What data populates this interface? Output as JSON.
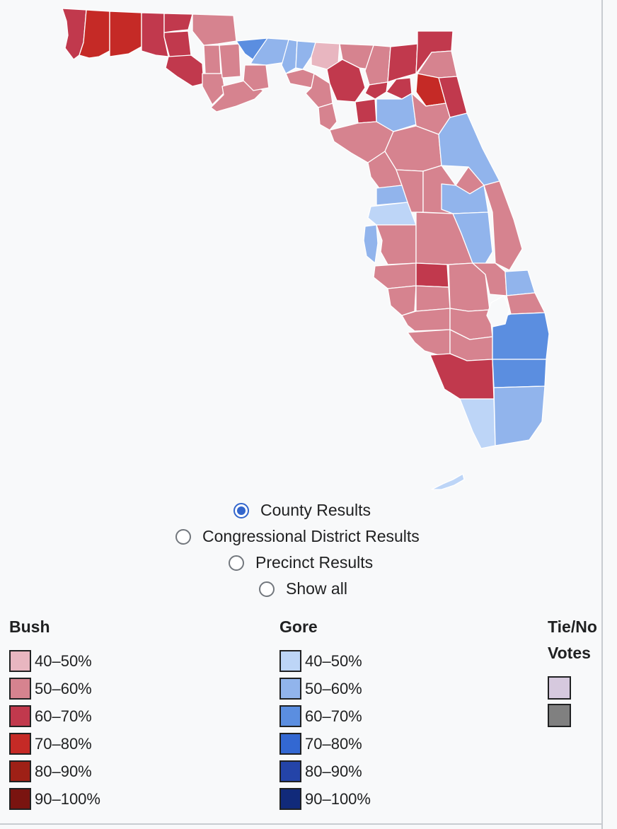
{
  "map": {
    "colors": {
      "bush_40_50": "#e8b6c0",
      "bush_50_60": "#d6838f",
      "bush_60_70": "#c1394d",
      "bush_70_80": "#c52a26",
      "gore_40_50": "#bdd5f7",
      "gore_50_60": "#91b4ec",
      "gore_60_70": "#5b8ee0",
      "gore_70_80": "#3368d2",
      "water": "#f8f9fa"
    }
  },
  "view_options": {
    "county": "County Results",
    "district": "Congressional District Results",
    "precinct": "Precinct Results",
    "all": "Show all",
    "selected": "County Results"
  },
  "legend": {
    "bush": {
      "title": "Bush",
      "items": [
        {
          "label": "40–50%",
          "color": "#e8b6c0"
        },
        {
          "label": "50–60%",
          "color": "#d6838f"
        },
        {
          "label": "60–70%",
          "color": "#c1394d"
        },
        {
          "label": "70–80%",
          "color": "#c52a26"
        },
        {
          "label": "80–90%",
          "color": "#9e2016"
        },
        {
          "label": "90–100%",
          "color": "#7a1410"
        }
      ]
    },
    "gore": {
      "title": "Gore",
      "items": [
        {
          "label": "40–50%",
          "color": "#bdd5f7"
        },
        {
          "label": "50–60%",
          "color": "#91b4ec"
        },
        {
          "label": "60–70%",
          "color": "#5b8ee0"
        },
        {
          "label": "70–80%",
          "color": "#3368d2"
        },
        {
          "label": "80–90%",
          "color": "#2444a8"
        },
        {
          "label": "90–100%",
          "color": "#112a7a"
        }
      ]
    },
    "tie": {
      "title_line1": "Tie/No",
      "title_line2": "Votes",
      "items": [
        {
          "color": "#d6c9de"
        },
        {
          "color": "#808080"
        }
      ]
    }
  }
}
